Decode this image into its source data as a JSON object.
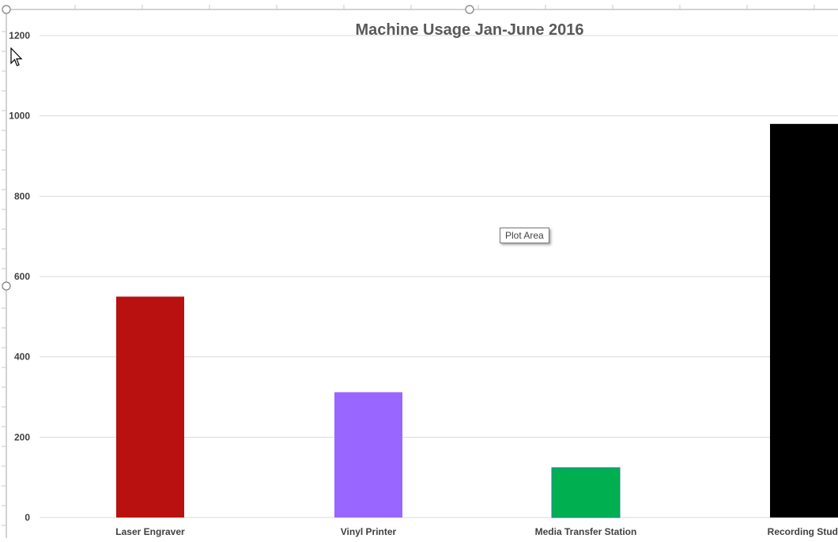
{
  "chart_data": {
    "type": "bar",
    "title": "Machine Usage Jan-June 2016",
    "categories": [
      "Laser Engraver",
      "Vinyl Printer",
      "Media Transfer Station",
      "Recording Studio"
    ],
    "category_labels_visible": [
      "Laser Engraver",
      "Vinyl Printer",
      "Media Transfer Station",
      "Recording Studi"
    ],
    "values": [
      550,
      312,
      124,
      980
    ],
    "colors": [
      "#b91010",
      "#9966ff",
      "#00b050",
      "#000000"
    ],
    "ylim": [
      0,
      1200
    ],
    "yticks": [
      "0",
      "200",
      "400",
      "600",
      "800",
      "1000",
      "1200"
    ],
    "ytick_values": [
      0,
      200,
      400,
      600,
      800,
      1000,
      1200
    ],
    "xlabel": "",
    "ylabel": "",
    "grid": true,
    "legend": "none"
  },
  "tooltip": {
    "text": "Plot Area"
  }
}
